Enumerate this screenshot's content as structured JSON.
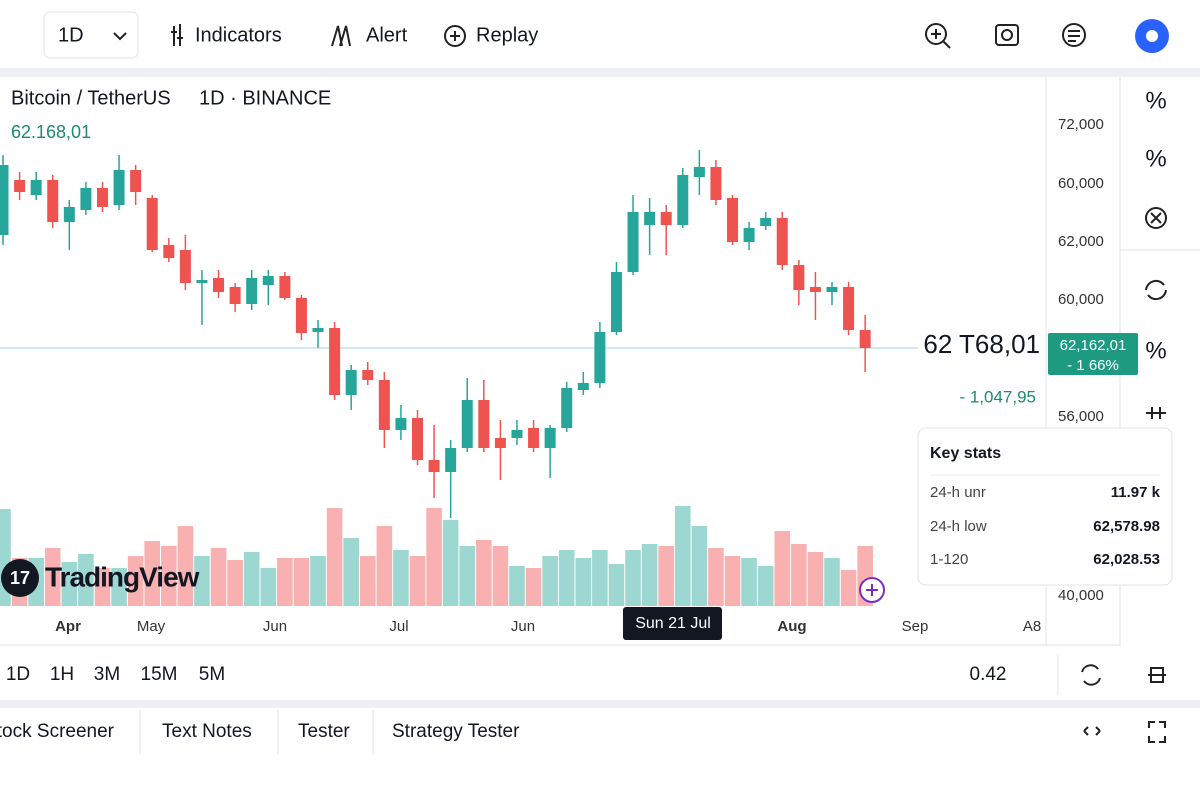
{
  "toolbar": {
    "interval": "1D",
    "buttons": [
      "Indicators",
      "Alert",
      "Replay"
    ]
  },
  "chart_data": {
    "type": "candlestick",
    "symbol": "Bitcoin / TetherUS",
    "exchange": "1D · BINANCE",
    "header_price": "62.168,01",
    "last_price": "62 T68,01",
    "badge_price": "62,162,01",
    "badge_change": "- 1 66%",
    "change": "- 1,047,95",
    "watermark": {
      "logo": "17",
      "text": "TradingView"
    },
    "ylim": [
      39700,
      75060
    ],
    "up_color": "#26a69a",
    "down_color": "#ef5350",
    "price_line": 56836,
    "open": [
      64520,
      68260,
      67240,
      68260,
      65404,
      66220,
      67716,
      66560,
      68940,
      67036,
      63840,
      63500,
      61256,
      61596,
      60984,
      59828,
      61120,
      61732,
      60236,
      57924,
      58196,
      53640,
      55340,
      54660,
      51260,
      52076,
      49220,
      48404,
      50036,
      53300,
      50716,
      50716,
      51396,
      50036,
      51396,
      53980,
      54456,
      57924,
      62004,
      65200,
      66084,
      65200,
      68464,
      69144,
      67036,
      64044,
      65132,
      65676,
      62480,
      60984,
      60644,
      60984,
      58060
    ],
    "high": [
      69960,
      68804,
      68804,
      68600,
      66900,
      68124,
      68124,
      69960,
      69280,
      67240,
      64316,
      64520,
      62140,
      62140,
      61256,
      62140,
      62140,
      62004,
      60440,
      58740,
      58604,
      55680,
      55884,
      55204,
      52960,
      52620,
      51600,
      50580,
      54796,
      54660,
      51940,
      51940,
      51940,
      51600,
      54524,
      55204,
      58604,
      62684,
      67240,
      67036,
      66560,
      69076,
      70300,
      69620,
      67240,
      65404,
      66084,
      66084,
      62820,
      62004,
      61324,
      61324,
      59080
    ],
    "low": [
      63840,
      66900,
      66900,
      64996,
      63500,
      65880,
      66084,
      66220,
      66560,
      63364,
      62684,
      60780,
      58400,
      60236,
      59284,
      59420,
      59760,
      60100,
      57380,
      56836,
      53300,
      52620,
      54320,
      50036,
      50580,
      48880,
      46636,
      45276,
      49764,
      49764,
      47860,
      50240,
      49764,
      47996,
      51124,
      53640,
      54116,
      57720,
      61800,
      63160,
      63160,
      64996,
      67240,
      66560,
      63840,
      63500,
      64860,
      62140,
      59760,
      58740,
      59760,
      57720,
      55204
    ],
    "close": [
      69280,
      67444,
      68260,
      65404,
      66424,
      67716,
      66424,
      68940,
      67444,
      63500,
      62956,
      61256,
      61460,
      60644,
      59828,
      61596,
      61732,
      60236,
      57856,
      58196,
      53640,
      55340,
      54660,
      51260,
      52076,
      49220,
      48404,
      50036,
      53300,
      50036,
      50036,
      51260,
      50036,
      51396,
      54116,
      54456,
      57924,
      62004,
      66084,
      66084,
      65200,
      68600,
      69144,
      66900,
      64044,
      64996,
      65676,
      62480,
      60780,
      60644,
      60984,
      58060,
      56836
    ],
    "volume": [
      97,
      48,
      48,
      58,
      44,
      52,
      38,
      38,
      50,
      65,
      60,
      80,
      50,
      58,
      46,
      54,
      38,
      48,
      48,
      50,
      98,
      68,
      50,
      80,
      56,
      50,
      98,
      86,
      60,
      66,
      60,
      40,
      38,
      50,
      56,
      48,
      56,
      42,
      56,
      62,
      60,
      100,
      80,
      58,
      50,
      48,
      40,
      75,
      62,
      54,
      48,
      36,
      60
    ],
    "price_axis_labels": [
      "72,000",
      "60,000",
      "62,000",
      "60,000",
      "56,000",
      "40,000"
    ],
    "x_labels": [
      "Apr",
      "May",
      "Jun",
      "Jul",
      "Jun",
      "Aug",
      "Sep",
      "A8"
    ],
    "crosshair_date": "Sun 21 Jul"
  },
  "key_stats": {
    "title": "Key stats",
    "rows": [
      {
        "label": "24-h unr",
        "value": "11.97 k"
      },
      {
        "label": "24-h low",
        "value": "62,578.98"
      },
      {
        "label": "1-120",
        "value": "62,028.53"
      }
    ]
  },
  "right_tools": [
    "%",
    "%",
    "%"
  ],
  "bottom_bar": {
    "timeframes": [
      "1D",
      "1H",
      "3M",
      "15M",
      "5M"
    ],
    "value": "0.42"
  },
  "tabs": [
    "Stock Screener",
    "Text Notes",
    "Tester",
    "Strategy Tester"
  ]
}
